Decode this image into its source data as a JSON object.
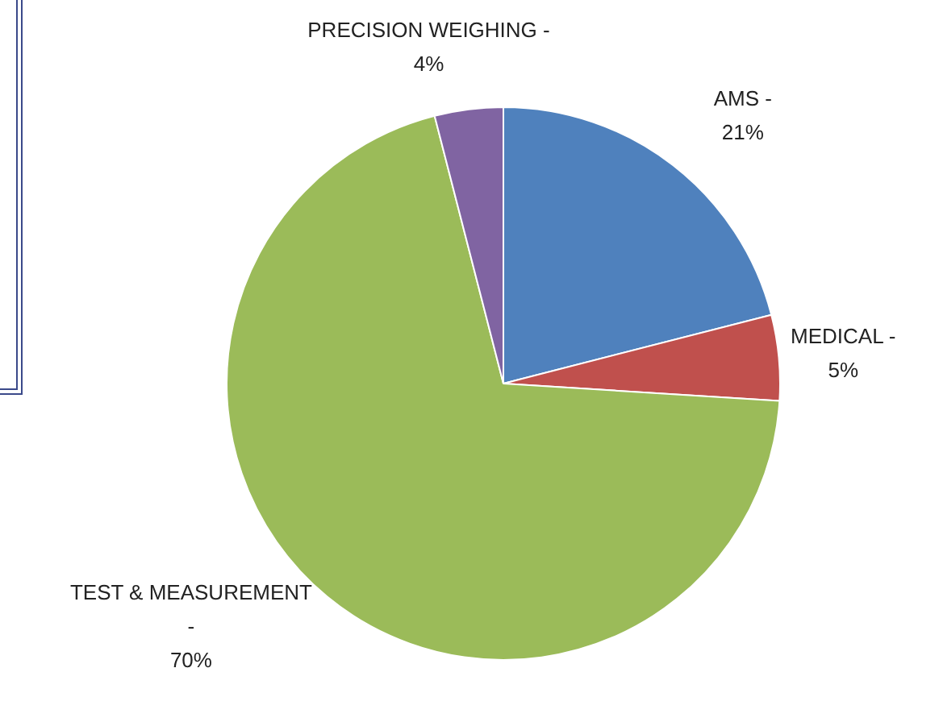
{
  "chart_data": {
    "type": "pie",
    "categories": [
      "AMS -",
      "MEDICAL -",
      "TEST & MEASUREMENT -",
      "PRECISION WEIGHING -"
    ],
    "values": [
      21,
      5,
      70,
      4
    ],
    "colors": [
      "#4f81bd",
      "#c0504d",
      "#9bbb59",
      "#8064a2"
    ],
    "value_labels": [
      "21%",
      "5%",
      "70%",
      "4%"
    ],
    "legend": false
  }
}
